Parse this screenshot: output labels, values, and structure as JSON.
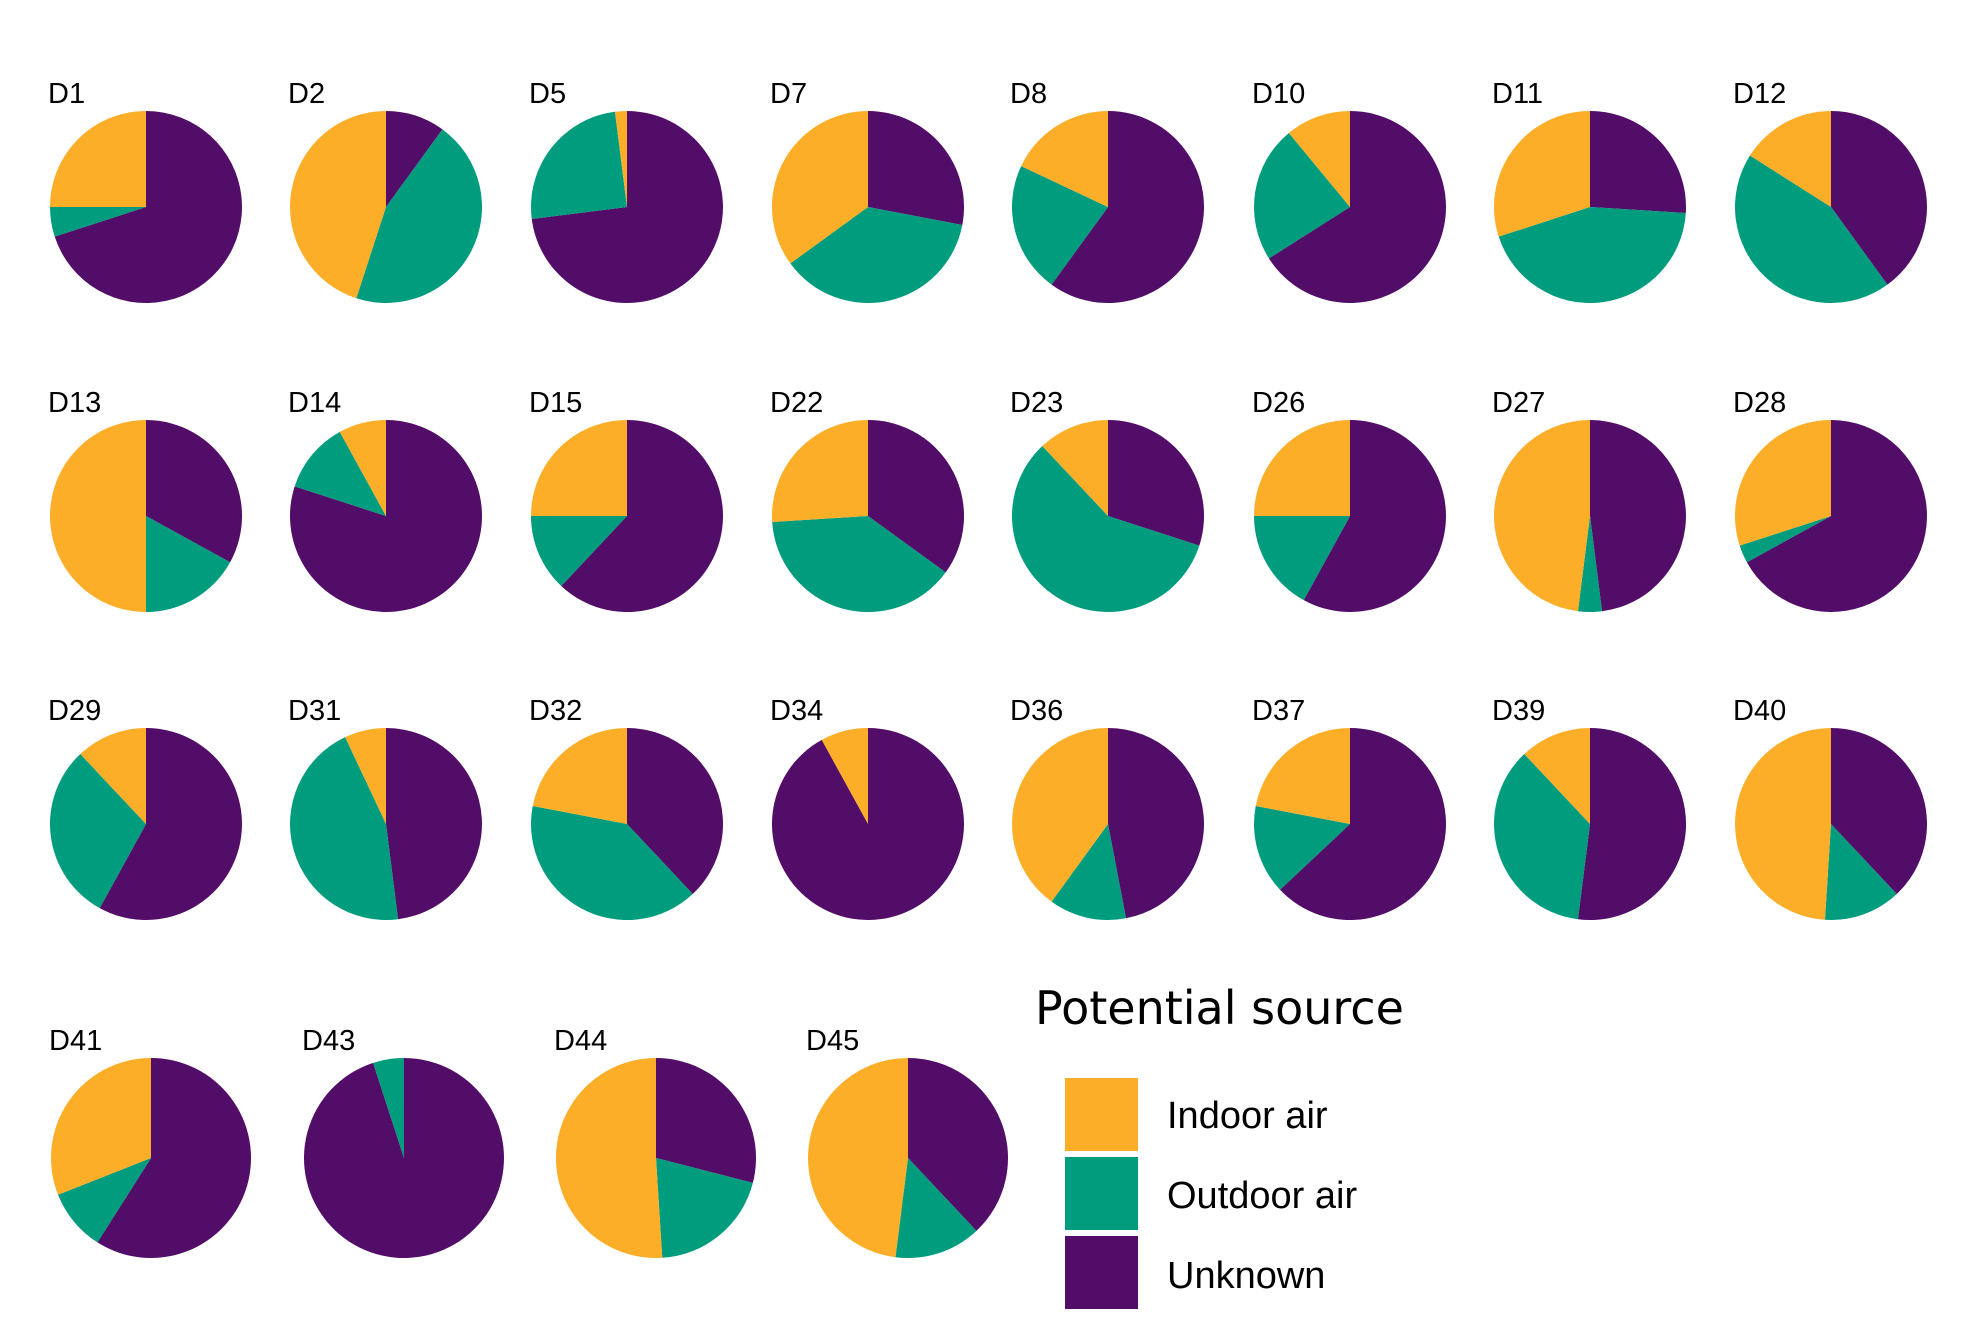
{
  "chart_data": {
    "type": "pie",
    "title": "",
    "facet_panels": true,
    "slice_order_clockwise_from_top": [
      "Unknown",
      "Outdoor air",
      "Indoor air"
    ],
    "legend": {
      "title": "Potential source",
      "position": "bottom-right",
      "entries": [
        {
          "label": "Indoor air",
          "color": "#FDAE28"
        },
        {
          "label": "Outdoor air",
          "color": "#009C7E"
        },
        {
          "label": "Unknown",
          "color": "#520D68"
        }
      ]
    },
    "series_names": [
      "Indoor air",
      "Outdoor air",
      "Unknown"
    ],
    "units": "percent (estimated)",
    "panels": [
      {
        "label": "D1",
        "values": {
          "Indoor air": 25,
          "Outdoor air": 5,
          "Unknown": 70
        }
      },
      {
        "label": "D2",
        "values": {
          "Indoor air": 45,
          "Outdoor air": 45,
          "Unknown": 10
        }
      },
      {
        "label": "D5",
        "values": {
          "Indoor air": 2,
          "Outdoor air": 25,
          "Unknown": 73
        }
      },
      {
        "label": "D7",
        "values": {
          "Indoor air": 35,
          "Outdoor air": 37,
          "Unknown": 28
        }
      },
      {
        "label": "D8",
        "values": {
          "Indoor air": 18,
          "Outdoor air": 22,
          "Unknown": 60
        }
      },
      {
        "label": "D10",
        "values": {
          "Indoor air": 11,
          "Outdoor air": 23,
          "Unknown": 66
        }
      },
      {
        "label": "D11",
        "values": {
          "Indoor air": 30,
          "Outdoor air": 44,
          "Unknown": 26
        }
      },
      {
        "label": "D12",
        "values": {
          "Indoor air": 16,
          "Outdoor air": 44,
          "Unknown": 40
        }
      },
      {
        "label": "D13",
        "values": {
          "Indoor air": 50,
          "Outdoor air": 17,
          "Unknown": 33
        }
      },
      {
        "label": "D14",
        "values": {
          "Indoor air": 8,
          "Outdoor air": 12,
          "Unknown": 80
        }
      },
      {
        "label": "D15",
        "values": {
          "Indoor air": 25,
          "Outdoor air": 13,
          "Unknown": 62
        }
      },
      {
        "label": "D22",
        "values": {
          "Indoor air": 26,
          "Outdoor air": 39,
          "Unknown": 35
        }
      },
      {
        "label": "D23",
        "values": {
          "Indoor air": 12,
          "Outdoor air": 58,
          "Unknown": 30
        }
      },
      {
        "label": "D26",
        "values": {
          "Indoor air": 25,
          "Outdoor air": 17,
          "Unknown": 58
        }
      },
      {
        "label": "D27",
        "values": {
          "Indoor air": 48,
          "Outdoor air": 4,
          "Unknown": 48
        }
      },
      {
        "label": "D28",
        "values": {
          "Indoor air": 30,
          "Outdoor air": 3,
          "Unknown": 67
        }
      },
      {
        "label": "D29",
        "values": {
          "Indoor air": 12,
          "Outdoor air": 30,
          "Unknown": 58
        }
      },
      {
        "label": "D31",
        "values": {
          "Indoor air": 7,
          "Outdoor air": 45,
          "Unknown": 48
        }
      },
      {
        "label": "D32",
        "values": {
          "Indoor air": 22,
          "Outdoor air": 40,
          "Unknown": 38
        }
      },
      {
        "label": "D34",
        "values": {
          "Indoor air": 8,
          "Outdoor air": 0,
          "Unknown": 92
        }
      },
      {
        "label": "D36",
        "values": {
          "Indoor air": 40,
          "Outdoor air": 13,
          "Unknown": 47
        }
      },
      {
        "label": "D37",
        "values": {
          "Indoor air": 22,
          "Outdoor air": 15,
          "Unknown": 63
        }
      },
      {
        "label": "D39",
        "values": {
          "Indoor air": 12,
          "Outdoor air": 36,
          "Unknown": 52
        }
      },
      {
        "label": "D40",
        "values": {
          "Indoor air": 49,
          "Outdoor air": 13,
          "Unknown": 38
        }
      },
      {
        "label": "D41",
        "values": {
          "Indoor air": 31,
          "Outdoor air": 10,
          "Unknown": 59
        }
      },
      {
        "label": "D43",
        "values": {
          "Indoor air": 0,
          "Outdoor air": 5,
          "Unknown": 95
        }
      },
      {
        "label": "D44",
        "values": {
          "Indoor air": 51,
          "Outdoor air": 20,
          "Unknown": 29
        }
      },
      {
        "label": "D45",
        "values": {
          "Indoor air": 48,
          "Outdoor air": 14,
          "Unknown": 38
        }
      }
    ]
  }
}
